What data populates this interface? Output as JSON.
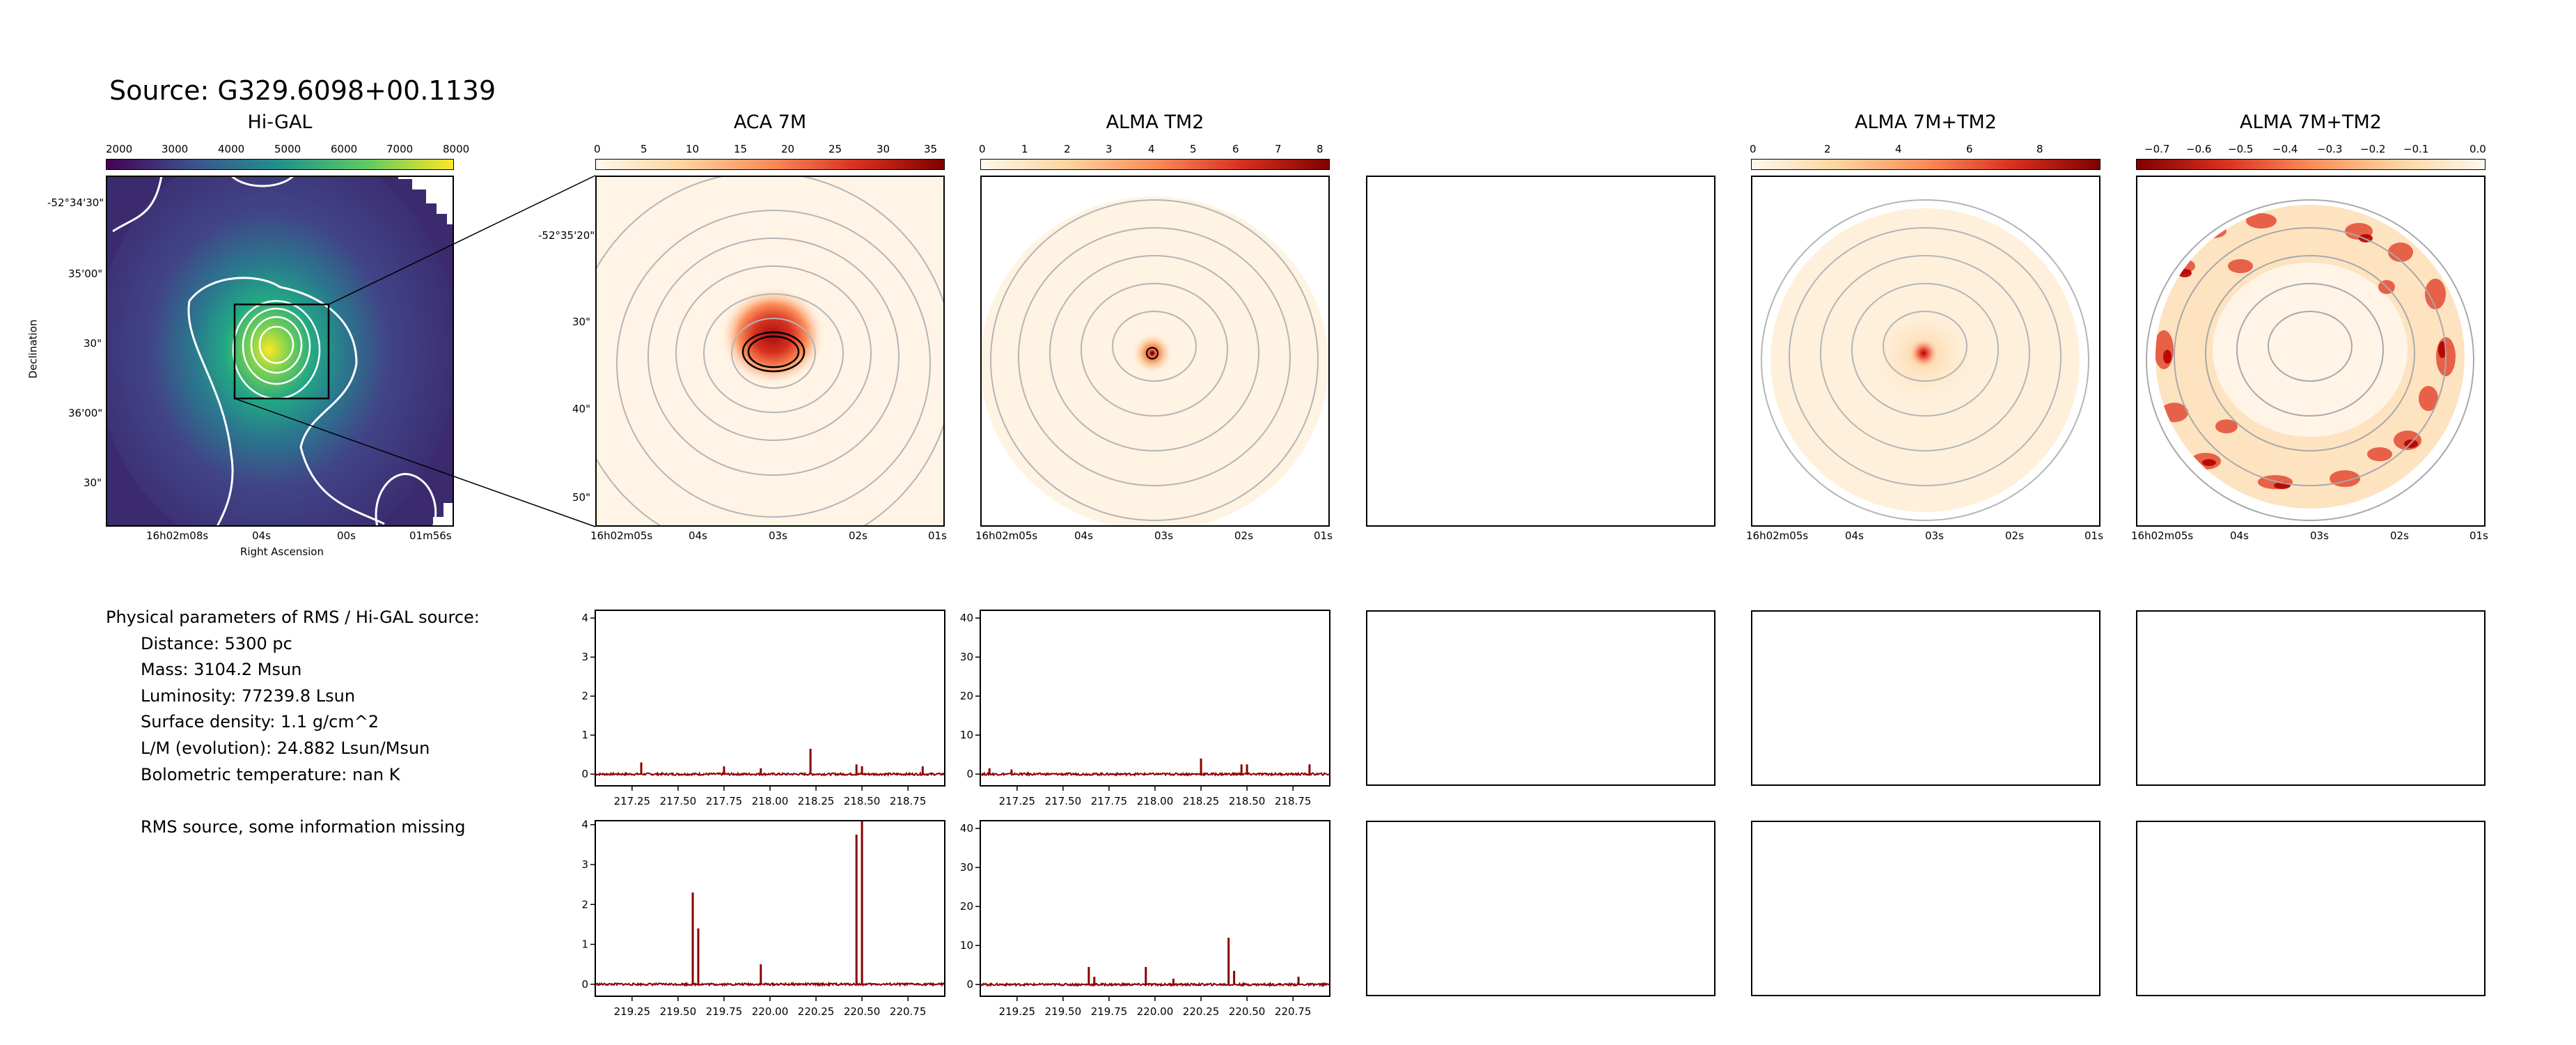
{
  "header": {
    "source_title": "Source: G329.6098+00.1139"
  },
  "panels": {
    "higal": {
      "title": "Hi-GAL",
      "colorbar_ticks": [
        "2000",
        "3000",
        "4000",
        "5000",
        "6000",
        "7000",
        "8000"
      ],
      "xticks": [
        "16h02m08s",
        "04s",
        "00s",
        "01m56s"
      ],
      "yticks": [
        "-52°34'30\"",
        "35'00\"",
        "30\"",
        "36'00\"",
        "30\""
      ],
      "xlabel": "Right Ascension",
      "ylabel": "Declination"
    },
    "aca7m": {
      "title": "ACA 7M",
      "colorbar_ticks": [
        "0",
        "5",
        "10",
        "15",
        "20",
        "25",
        "30",
        "35"
      ],
      "xticks": [
        "16h02m05s",
        "04s",
        "03s",
        "02s",
        "01s"
      ],
      "yticks": [
        "-52°35'20\"",
        "30\"",
        "40\"",
        "50\""
      ]
    },
    "tm2": {
      "title": "ALMA TM2",
      "colorbar_ticks": [
        "0",
        "1",
        "2",
        "3",
        "4",
        "5",
        "6",
        "7",
        "8"
      ],
      "xticks": [
        "16h02m05s",
        "04s",
        "03s",
        "02s",
        "01s"
      ]
    },
    "combo": {
      "title": "ALMA 7M+TM2",
      "colorbar_ticks": [
        "0",
        "2",
        "4",
        "6",
        "8"
      ],
      "xticks": [
        "16h02m05s",
        "04s",
        "03s",
        "02s",
        "01s"
      ]
    },
    "combo_neg": {
      "title": "ALMA 7M+TM2",
      "colorbar_ticks": [
        "−0.7",
        "−0.6",
        "−0.5",
        "−0.4",
        "−0.3",
        "−0.2",
        "−0.1",
        "0.0"
      ],
      "xticks": [
        "16h02m05s",
        "04s",
        "03s",
        "02s",
        "01s"
      ]
    }
  },
  "physical": {
    "heading": "Physical parameters of RMS / Hi-GAL source:",
    "distance": "Distance: 5300 pc",
    "mass": "Mass: 3104.2 Msun",
    "luminosity": "Luminosity: 77239.8 Lsun",
    "surface_density": "Surface density: 1.1 g/cm^2",
    "lm": "L/M (evolution): 24.882 Lsun/Msun",
    "tbol": "Bolometric temperature: nan K",
    "note": "RMS source, some information missing"
  },
  "colors": {
    "spectrum": "#8b0000",
    "viridis_bg": "#3b2a6e",
    "contour_higal": "#ffffff",
    "contour_alma": "#a9a9a9"
  },
  "chart_data": [
    {
      "type": "line",
      "panel": "spectrum-aca-lower",
      "x_ticks": [
        "217.25",
        "217.50",
        "217.75",
        "218.00",
        "218.25",
        "218.50",
        "218.75"
      ],
      "y_ticks": [
        "0",
        "1",
        "2",
        "3",
        "4"
      ],
      "xlim": [
        217.05,
        218.95
      ],
      "ylim": [
        -0.3,
        4.2
      ],
      "lines": [
        [
          217.3,
          0.3
        ],
        [
          217.75,
          0.2
        ],
        [
          217.95,
          0.15
        ],
        [
          218.22,
          0.65
        ],
        [
          218.47,
          0.25
        ],
        [
          218.5,
          0.2
        ],
        [
          218.83,
          0.2
        ]
      ]
    },
    {
      "type": "line",
      "panel": "spectrum-tm2-lower",
      "x_ticks": [
        "217.25",
        "217.50",
        "217.75",
        "218.00",
        "218.25",
        "218.50",
        "218.75"
      ],
      "y_ticks": [
        "0",
        "10",
        "20",
        "30",
        "40"
      ],
      "xlim": [
        217.05,
        218.95
      ],
      "ylim": [
        -3,
        42
      ],
      "lines": [
        [
          217.1,
          1.5
        ],
        [
          217.22,
          1.2
        ],
        [
          218.25,
          4
        ],
        [
          218.47,
          2.5
        ],
        [
          218.5,
          2.5
        ],
        [
          218.84,
          2.5
        ]
      ]
    },
    {
      "type": "line",
      "panel": "spectrum-aca-upper",
      "x_ticks": [
        "219.25",
        "219.50",
        "219.75",
        "220.00",
        "220.25",
        "220.50",
        "220.75"
      ],
      "y_ticks": [
        "0",
        "1",
        "2",
        "3",
        "4"
      ],
      "xlim": [
        219.05,
        220.95
      ],
      "ylim": [
        -0.3,
        4.1
      ],
      "lines": [
        [
          219.58,
          2.3
        ],
        [
          219.61,
          1.4
        ],
        [
          219.95,
          0.5
        ],
        [
          220.47,
          3.75
        ],
        [
          220.5,
          4.1
        ]
      ]
    },
    {
      "type": "line",
      "panel": "spectrum-tm2-upper",
      "x_ticks": [
        "219.25",
        "219.50",
        "219.75",
        "220.00",
        "220.25",
        "220.50",
        "220.75"
      ],
      "y_ticks": [
        "0",
        "10",
        "20",
        "30",
        "40"
      ],
      "xlim": [
        219.05,
        220.95
      ],
      "ylim": [
        -3,
        42
      ],
      "lines": [
        [
          219.64,
          4.5
        ],
        [
          219.67,
          2
        ],
        [
          219.95,
          4.5
        ],
        [
          220.1,
          1.5
        ],
        [
          220.4,
          12
        ],
        [
          220.43,
          3.5
        ],
        [
          220.78,
          2
        ]
      ]
    }
  ]
}
